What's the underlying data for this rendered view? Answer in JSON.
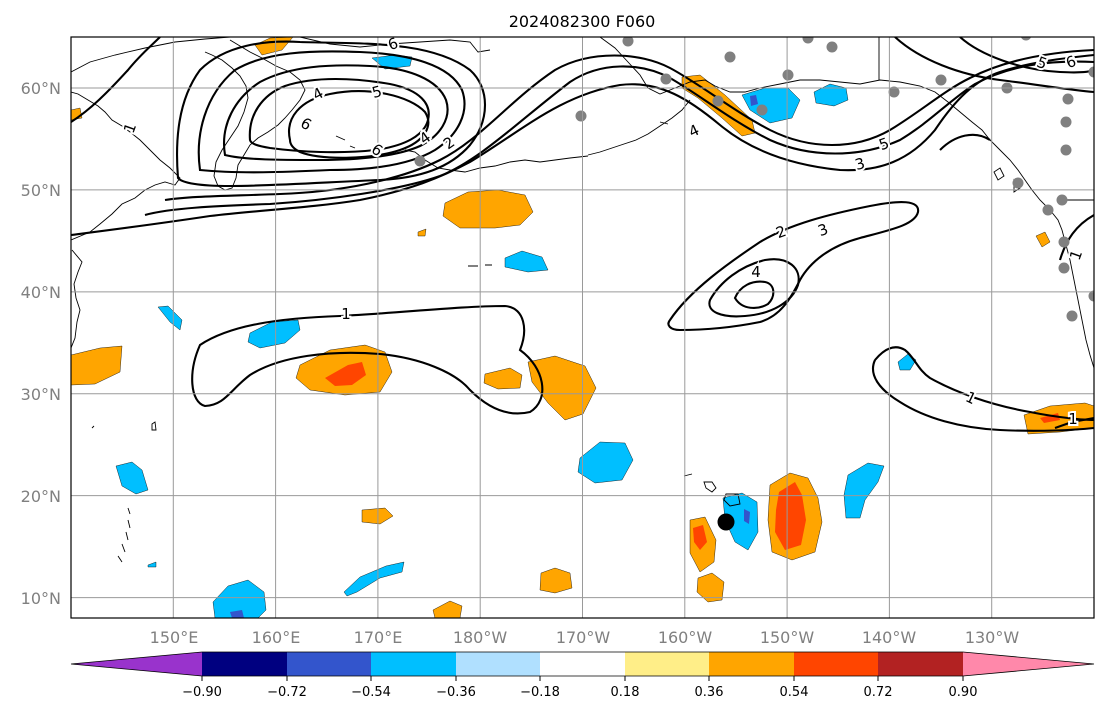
{
  "title": "2024082300 F060",
  "map": {
    "lat_labels": [
      "60°N",
      "50°N",
      "40°N",
      "30°N",
      "20°N",
      "10°N"
    ],
    "lon_labels": [
      "150°E",
      "160°E",
      "170°E",
      "180°W",
      "170°W",
      "160°W",
      "150°W",
      "140°W",
      "130°W"
    ],
    "extent": {
      "lon_min": 140,
      "lon_max": 240,
      "lat_min": 8,
      "lat_max": 65
    },
    "contour_labels": [
      "6",
      "4",
      "5",
      "6",
      "4",
      "2",
      "6",
      "4",
      "5",
      "6",
      "1",
      "1",
      "2",
      "3",
      "4",
      "5",
      "3",
      "1",
      "1",
      "1"
    ],
    "contour_color": "#000000",
    "point_color": "#808080",
    "marker_color": "#000000"
  },
  "colorbar": {
    "tick_labels": [
      "−0.90",
      "−0.72",
      "−0.54",
      "−0.36",
      "−0.18",
      "0.18",
      "0.36",
      "0.54",
      "0.72",
      "0.90"
    ],
    "colors": [
      "#9933cc",
      "#000080",
      "#3355cc",
      "#00bfff",
      "#b0e0ff",
      "#ffffff",
      "#ffee88",
      "#ffa500",
      "#ff4500",
      "#b22222",
      "#ff88aa"
    ]
  }
}
